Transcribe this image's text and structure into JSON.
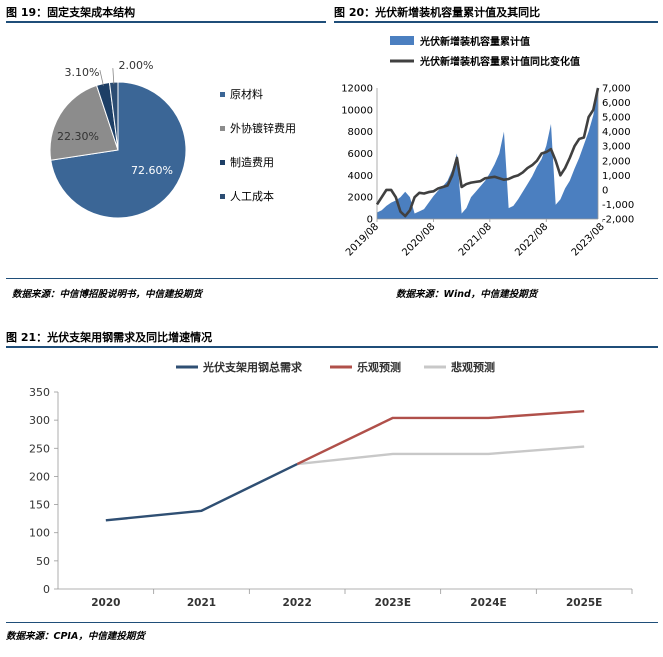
{
  "fig19": {
    "title": "图 19：固定支架成本结构",
    "source": "数据来源：中信博招股说明书，中信建投期货"
  },
  "fig20": {
    "title": "图 20：光伏新增装机容量累计值及其同比",
    "source": "数据来源：Wind，中信建投期货"
  },
  "fig21": {
    "title": "图 21：光伏支架用钢需求及同比增速情况",
    "source": "数据来源：CPIA，中信建投期货"
  },
  "chart_data": [
    {
      "id": "fig19",
      "type": "pie",
      "categories": [
        "原材料",
        "外协镀锌费用",
        "制造费用",
        "人工成本"
      ],
      "values": [
        72.6,
        22.3,
        3.1,
        2.0
      ],
      "labels": [
        "72.60%",
        "22.30%",
        "3.10%",
        "2.00%"
      ],
      "colors": [
        "#3b6696",
        "#8c8c8c",
        "#1d3f66",
        "#2c4d73"
      ],
      "legend_position": "right"
    },
    {
      "id": "fig20",
      "type": "area",
      "series": [
        {
          "name": "光伏新增装机容量累计值",
          "kind": "area",
          "axis": "left",
          "color": "#4b7fc0",
          "values": [
            600,
            800,
            1200,
            1500,
            1700,
            2000,
            2500,
            2000,
            500,
            700,
            900,
            1500,
            2100,
            2600,
            3000,
            3500,
            4500,
            6000,
            500,
            1000,
            2000,
            2500,
            3000,
            3500,
            4200,
            5000,
            6000,
            8000,
            1000,
            1200,
            1800,
            2500,
            3200,
            3900,
            4800,
            5500,
            6700,
            8700,
            1300,
            1800,
            2800,
            3500,
            4600,
            5600,
            6800,
            8000,
            9500,
            12100
          ]
        },
        {
          "name": "光伏新增装机容量累计值同比变化值",
          "kind": "line",
          "axis": "right",
          "color": "#404040",
          "values": [
            -1000,
            -500,
            0,
            0,
            -500,
            -1500,
            -1800,
            -1400,
            -500,
            -200,
            -250,
            -150,
            -100,
            100,
            200,
            300,
            1000,
            2200,
            200,
            400,
            500,
            550,
            600,
            800,
            850,
            900,
            800,
            700,
            750,
            900,
            1000,
            1200,
            1500,
            1700,
            2000,
            2500,
            2600,
            2800,
            2000,
            1000,
            1500,
            2200,
            3000,
            3500,
            3600,
            5000,
            5500,
            7000
          ]
        }
      ],
      "x_tick_labels": [
        "2019/08",
        "2020/08",
        "2021/08",
        "2022/08",
        "2023/08"
      ],
      "y_left": {
        "min": 0,
        "max": 12000,
        "ticks": [
          "0",
          "2000",
          "4000",
          "6000",
          "8000",
          "10000",
          "12000"
        ]
      },
      "y_right": {
        "min": -2000,
        "max": 7000,
        "ticks": [
          "-2,000",
          "-1,000",
          "0",
          "1,000",
          "2,000",
          "3,000",
          "4,000",
          "5,000",
          "6,000",
          "7,000"
        ]
      },
      "legend_position": "top"
    },
    {
      "id": "fig21",
      "type": "line",
      "categories": [
        "2020",
        "2021",
        "2022",
        "2023E",
        "2024E",
        "2025E"
      ],
      "series": [
        {
          "name": "光伏支架用钢总需求",
          "color": "#2f4f73",
          "values": [
            122,
            139,
            222,
            null,
            null,
            null
          ]
        },
        {
          "name": "乐观预测",
          "color": "#b0504a",
          "values": [
            null,
            null,
            222,
            304,
            304,
            316
          ]
        },
        {
          "name": "悲观预测",
          "color": "#c8c8c8",
          "values": [
            null,
            null,
            222,
            240,
            240,
            253
          ]
        }
      ],
      "ylim": [
        0,
        350
      ],
      "y_ticks": [
        "0",
        "50",
        "100",
        "150",
        "200",
        "250",
        "300",
        "350"
      ],
      "legend_position": "top",
      "grid": false
    }
  ]
}
